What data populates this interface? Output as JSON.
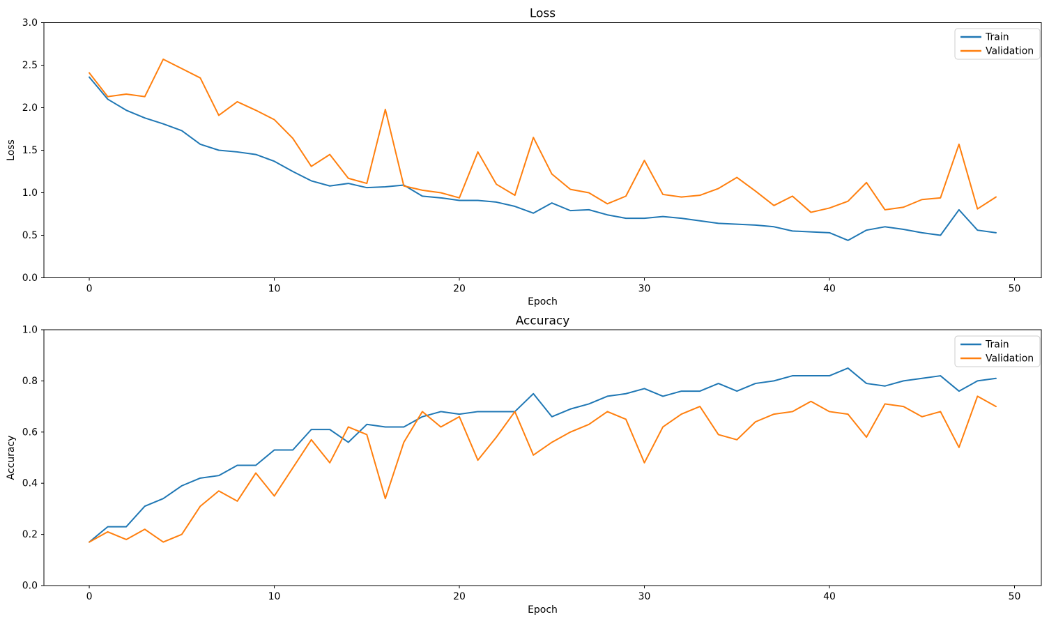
{
  "colors": {
    "train": "#1f77b4",
    "validation": "#ff7f0e",
    "spine": "#000000",
    "legend_border": "#cccccc",
    "background": "#ffffff"
  },
  "chart_data": [
    {
      "type": "line",
      "title": "Loss",
      "xlabel": "Epoch",
      "ylabel": "Loss",
      "xlim": [
        -2.45,
        51.45
      ],
      "ylim": [
        0,
        3
      ],
      "xticks": [
        0,
        10,
        20,
        30,
        40,
        50
      ],
      "yticks": [
        "0.0",
        "0.5",
        "1.0",
        "1.5",
        "2.0",
        "2.5",
        "3.0"
      ],
      "ytick_values": [
        0,
        0.5,
        1.0,
        1.5,
        2.0,
        2.5,
        3.0
      ],
      "grid": false,
      "legend": {
        "position": "upper right",
        "entries": [
          "Train",
          "Validation"
        ]
      },
      "x": [
        0,
        1,
        2,
        3,
        4,
        5,
        6,
        7,
        8,
        9,
        10,
        11,
        12,
        13,
        14,
        15,
        16,
        17,
        18,
        19,
        20,
        21,
        22,
        23,
        24,
        25,
        26,
        27,
        28,
        29,
        30,
        31,
        32,
        33,
        34,
        35,
        36,
        37,
        38,
        39,
        40,
        41,
        42,
        43,
        44,
        45,
        46,
        47,
        48,
        49
      ],
      "series": [
        {
          "name": "Train",
          "color": "#1f77b4",
          "values": [
            2.36,
            2.1,
            1.97,
            1.88,
            1.81,
            1.73,
            1.57,
            1.5,
            1.48,
            1.45,
            1.37,
            1.25,
            1.14,
            1.08,
            1.11,
            1.06,
            1.07,
            1.09,
            0.96,
            0.94,
            0.91,
            0.91,
            0.89,
            0.84,
            0.76,
            0.88,
            0.79,
            0.8,
            0.74,
            0.7,
            0.7,
            0.72,
            0.7,
            0.67,
            0.64,
            0.63,
            0.62,
            0.6,
            0.55,
            0.54,
            0.53,
            0.44,
            0.56,
            0.6,
            0.57,
            0.53,
            0.5,
            0.8,
            0.56,
            0.53
          ]
        },
        {
          "name": "Validation",
          "color": "#ff7f0e",
          "values": [
            2.41,
            2.13,
            2.16,
            2.13,
            2.57,
            2.46,
            2.35,
            1.91,
            2.07,
            1.97,
            1.86,
            1.64,
            1.31,
            1.45,
            1.17,
            1.11,
            1.98,
            1.08,
            1.03,
            1.0,
            0.94,
            1.48,
            1.1,
            0.97,
            1.65,
            1.22,
            1.04,
            1.0,
            0.87,
            0.96,
            1.38,
            0.98,
            0.95,
            0.97,
            1.05,
            1.18,
            1.02,
            0.85,
            0.96,
            0.77,
            0.82,
            0.9,
            1.12,
            0.8,
            0.83,
            0.92,
            0.94,
            1.57,
            0.81,
            0.95
          ]
        }
      ]
    },
    {
      "type": "line",
      "title": "Accuracy",
      "xlabel": "Epoch",
      "ylabel": "Accuracy",
      "xlim": [
        -2.45,
        51.45
      ],
      "ylim": [
        0,
        1
      ],
      "xticks": [
        0,
        10,
        20,
        30,
        40,
        50
      ],
      "yticks": [
        "0.0",
        "0.2",
        "0.4",
        "0.6",
        "0.8",
        "1.0"
      ],
      "ytick_values": [
        0,
        0.2,
        0.4,
        0.6,
        0.8,
        1.0
      ],
      "grid": false,
      "legend": {
        "position": "upper right",
        "entries": [
          "Train",
          "Validation"
        ]
      },
      "x": [
        0,
        1,
        2,
        3,
        4,
        5,
        6,
        7,
        8,
        9,
        10,
        11,
        12,
        13,
        14,
        15,
        16,
        17,
        18,
        19,
        20,
        21,
        22,
        23,
        24,
        25,
        26,
        27,
        28,
        29,
        30,
        31,
        32,
        33,
        34,
        35,
        36,
        37,
        38,
        39,
        40,
        41,
        42,
        43,
        44,
        45,
        46,
        47,
        48,
        49
      ],
      "series": [
        {
          "name": "Train",
          "color": "#1f77b4",
          "values": [
            0.17,
            0.23,
            0.23,
            0.31,
            0.34,
            0.39,
            0.42,
            0.43,
            0.47,
            0.47,
            0.53,
            0.53,
            0.61,
            0.61,
            0.56,
            0.63,
            0.62,
            0.62,
            0.66,
            0.68,
            0.67,
            0.68,
            0.68,
            0.68,
            0.75,
            0.66,
            0.69,
            0.71,
            0.74,
            0.75,
            0.77,
            0.74,
            0.76,
            0.76,
            0.79,
            0.76,
            0.79,
            0.8,
            0.82,
            0.82,
            0.82,
            0.85,
            0.79,
            0.78,
            0.8,
            0.81,
            0.82,
            0.76,
            0.8,
            0.81
          ]
        },
        {
          "name": "Validation",
          "color": "#ff7f0e",
          "values": [
            0.17,
            0.21,
            0.18,
            0.22,
            0.17,
            0.2,
            0.31,
            0.37,
            0.33,
            0.44,
            0.35,
            0.46,
            0.57,
            0.48,
            0.62,
            0.59,
            0.34,
            0.56,
            0.68,
            0.62,
            0.66,
            0.49,
            0.58,
            0.68,
            0.51,
            0.56,
            0.6,
            0.63,
            0.68,
            0.65,
            0.48,
            0.62,
            0.67,
            0.7,
            0.59,
            0.57,
            0.64,
            0.67,
            0.68,
            0.72,
            0.68,
            0.67,
            0.58,
            0.71,
            0.7,
            0.66,
            0.68,
            0.54,
            0.74,
            0.7
          ]
        }
      ]
    }
  ]
}
